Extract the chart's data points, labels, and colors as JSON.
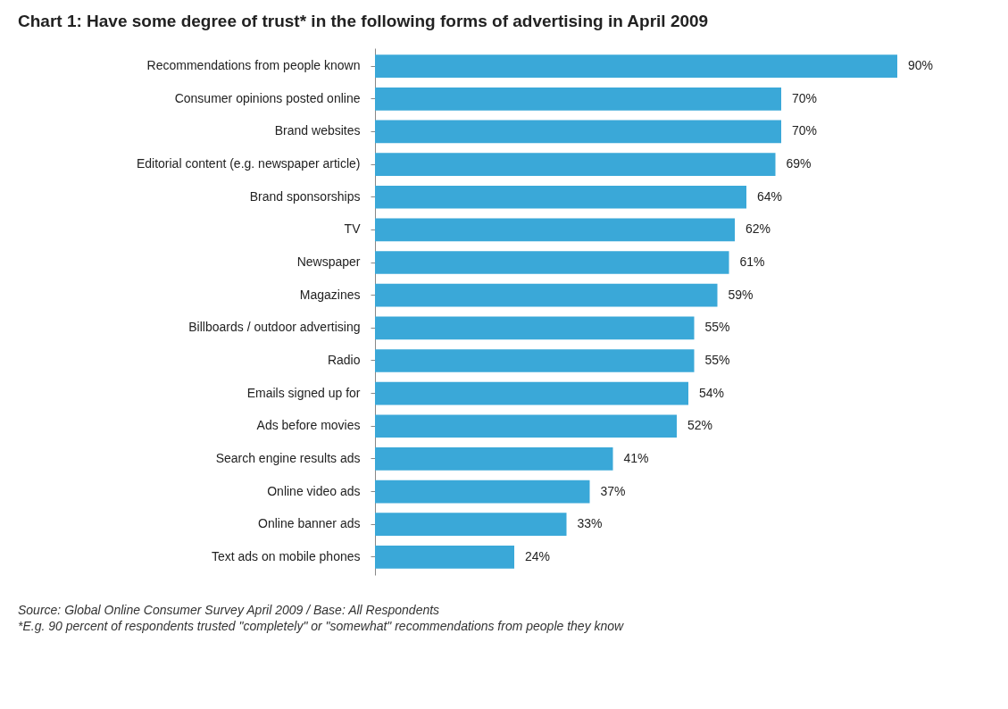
{
  "chart_data": {
    "type": "bar",
    "orientation": "horizontal",
    "title": "Chart 1: Have some degree of trust* in the following forms of advertising in April 2009",
    "categories": [
      "Recommendations from people known",
      "Consumer opinions posted online",
      "Brand websites",
      "Editorial content (e.g. newspaper article)",
      "Brand sponsorships",
      "TV",
      "Newspaper",
      "Magazines",
      "Billboards / outdoor advertising",
      "Radio",
      "Emails signed up for",
      "Ads before movies",
      "Search engine results ads",
      "Online video ads",
      "Online banner ads",
      "Text ads on mobile phones"
    ],
    "values": [
      90,
      70,
      70,
      69,
      64,
      62,
      61,
      59,
      55,
      55,
      54,
      52,
      41,
      37,
      33,
      24
    ],
    "value_labels": [
      "90%",
      "70%",
      "70%",
      "69%",
      "64%",
      "62%",
      "61%",
      "59%",
      "55%",
      "55%",
      "54%",
      "52%",
      "41%",
      "37%",
      "33%",
      "24%"
    ],
    "color": "#3aa8d8",
    "annotations": [
      "Source: Global Online Consumer Survey April 2009 / Base: All Respondents",
      "*E.g. 90 percent of respondents trusted \"completely\" or \"somewhat\" recommendations from people they know"
    ],
    "grid": false
  }
}
